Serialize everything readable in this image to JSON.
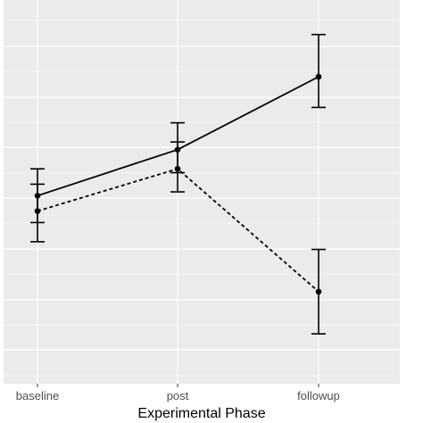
{
  "chart_data": {
    "type": "line",
    "xlabel": "Experimental Phase",
    "ylabel": "",
    "categories": [
      "baseline",
      "post",
      "followup"
    ],
    "ylim": [
      0,
      1
    ],
    "y_ticks_labeled": false,
    "grid": true,
    "legend": "none",
    "series": [
      {
        "style": "solid",
        "values": [
          0.49,
          0.61,
          0.8
        ],
        "error_low": [
          0.42,
          0.55,
          0.72
        ],
        "error_high": [
          0.56,
          0.68,
          0.91
        ]
      },
      {
        "style": "dashed",
        "values": [
          0.45,
          0.56,
          0.24
        ],
        "error_low": [
          0.37,
          0.5,
          0.13
        ],
        "error_high": [
          0.52,
          0.63,
          0.35
        ]
      }
    ],
    "colors": {
      "panel_background": "#ebebeb",
      "grid": "#ffffff",
      "line": "#000000"
    }
  }
}
